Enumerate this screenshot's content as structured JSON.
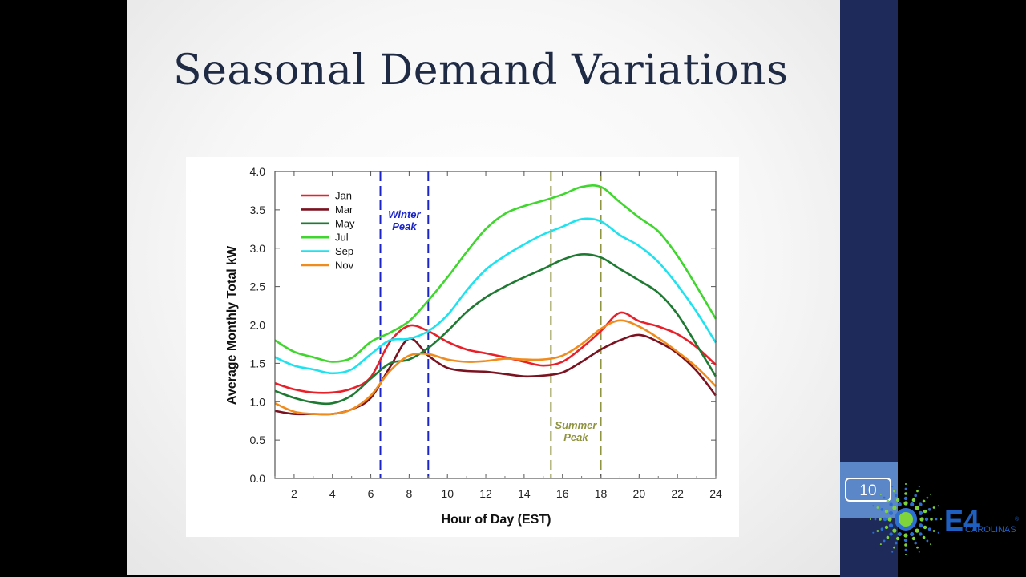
{
  "slide": {
    "title": "Seasonal Demand Variations",
    "page_number": "10",
    "logo_text": "E4",
    "logo_subtext": "CAROLINAS",
    "logo_mark": "®"
  },
  "colors": {
    "title": "#1f2a44",
    "sidebar": "#1e2a5a",
    "page_box": "#5b86c8",
    "winter_marker": "#1a24c8",
    "summer_marker": "#8f9440"
  },
  "chart_data": {
    "type": "line",
    "xlabel": "Hour of Day (EST)",
    "ylabel": "Average Monthly Total kW",
    "xlim": [
      1,
      24
    ],
    "ylim": [
      0,
      4
    ],
    "xticks": [
      2,
      4,
      6,
      8,
      10,
      12,
      14,
      16,
      18,
      20,
      22,
      24
    ],
    "yticks": [
      "0.0",
      "0.5",
      "1.0",
      "1.5",
      "2.0",
      "2.5",
      "3.0",
      "3.5",
      "4.0"
    ],
    "grid": false,
    "legend_position": "top-left",
    "x": [
      1,
      2,
      3,
      4,
      5,
      6,
      7,
      8,
      9,
      10,
      11,
      12,
      13,
      14,
      15,
      16,
      17,
      18,
      19,
      20,
      21,
      22,
      23,
      24
    ],
    "series": [
      {
        "name": "Jan",
        "color": "#e8202a",
        "values": [
          1.24,
          1.16,
          1.12,
          1.12,
          1.17,
          1.32,
          1.78,
          1.99,
          1.92,
          1.78,
          1.68,
          1.63,
          1.58,
          1.52,
          1.47,
          1.52,
          1.7,
          1.92,
          2.16,
          2.05,
          1.98,
          1.88,
          1.71,
          1.48
        ]
      },
      {
        "name": "Mar",
        "color": "#7a1220",
        "values": [
          0.88,
          0.84,
          0.84,
          0.84,
          0.9,
          1.05,
          1.45,
          1.82,
          1.6,
          1.44,
          1.4,
          1.39,
          1.36,
          1.33,
          1.34,
          1.38,
          1.52,
          1.68,
          1.8,
          1.87,
          1.78,
          1.63,
          1.4,
          1.08
        ]
      },
      {
        "name": "May",
        "color": "#1e7a32",
        "values": [
          1.14,
          1.05,
          0.99,
          0.98,
          1.08,
          1.3,
          1.5,
          1.55,
          1.7,
          1.92,
          2.17,
          2.36,
          2.5,
          2.62,
          2.73,
          2.85,
          2.92,
          2.88,
          2.73,
          2.58,
          2.42,
          2.14,
          1.74,
          1.33
        ]
      },
      {
        "name": "Jul",
        "color": "#3fd62e",
        "values": [
          1.8,
          1.65,
          1.58,
          1.52,
          1.57,
          1.78,
          1.9,
          2.05,
          2.32,
          2.62,
          2.95,
          3.25,
          3.45,
          3.55,
          3.62,
          3.7,
          3.8,
          3.8,
          3.6,
          3.4,
          3.22,
          2.9,
          2.5,
          2.08
        ]
      },
      {
        "name": "Sep",
        "color": "#1ee2ee",
        "values": [
          1.58,
          1.47,
          1.42,
          1.37,
          1.42,
          1.62,
          1.8,
          1.82,
          1.92,
          2.13,
          2.45,
          2.72,
          2.9,
          3.05,
          3.18,
          3.28,
          3.38,
          3.35,
          3.17,
          3.03,
          2.82,
          2.52,
          2.17,
          1.77
        ]
      },
      {
        "name": "Nov",
        "color": "#f08c1e",
        "values": [
          0.98,
          0.87,
          0.84,
          0.84,
          0.9,
          1.08,
          1.4,
          1.6,
          1.62,
          1.55,
          1.52,
          1.53,
          1.56,
          1.55,
          1.55,
          1.6,
          1.75,
          1.95,
          2.06,
          1.98,
          1.83,
          1.65,
          1.45,
          1.2
        ]
      }
    ],
    "annotations": [
      {
        "label": "Winter Peak",
        "lines": [
          "Winter",
          "Peak"
        ],
        "x_range": [
          6.5,
          9
        ],
        "color": "#1a24c8"
      },
      {
        "label": "Summer Peak",
        "lines": [
          "Summer",
          "Peak"
        ],
        "x_range": [
          15.4,
          18
        ],
        "color": "#8f9440"
      }
    ]
  }
}
